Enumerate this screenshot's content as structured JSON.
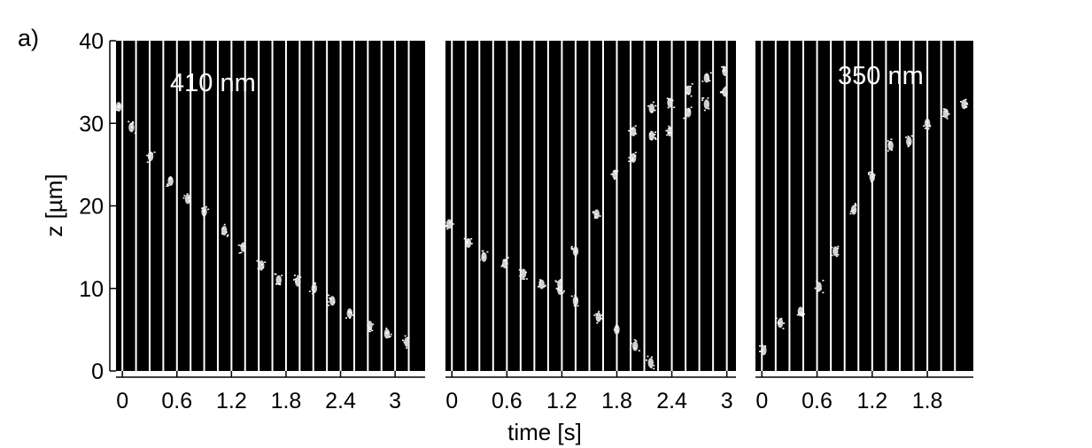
{
  "chart_data": {
    "type": "scatter",
    "panel_label": "a)",
    "xlabel": "time [s]",
    "ylabel": "z [µm]",
    "ylim": [
      0,
      40
    ],
    "y_ticks": [
      0,
      10,
      20,
      30,
      40
    ],
    "panels": [
      {
        "annotation": "410 nm",
        "xlim": [
          -0.07,
          3.33
        ],
        "x_ticks": [
          {
            "label": "0",
            "value": 0
          },
          {
            "label": "0.6",
            "value": 0.6
          },
          {
            "label": "1.2",
            "value": 1.2
          },
          {
            "label": "1.8",
            "value": 1.8
          },
          {
            "label": "2.4",
            "value": 2.4
          },
          {
            "label": "3",
            "value": 3.0
          }
        ],
        "frames": [
          0,
          0.15,
          0.3,
          0.45,
          0.6,
          0.75,
          0.9,
          1.05,
          1.2,
          1.35,
          1.5,
          1.65,
          1.8,
          1.95,
          2.1,
          2.25,
          2.4,
          2.55,
          2.7,
          2.85,
          3.0,
          3.15
        ],
        "series": [
          {
            "x": [
              -0.04,
              0.1,
              0.31,
              0.53,
              0.72,
              0.9,
              1.12,
              1.33,
              1.53,
              1.72,
              1.93,
              2.11,
              2.31,
              2.5,
              2.72,
              2.91,
              3.13
            ],
            "y": [
              32,
              29.5,
              26,
              23,
              20.8,
              19.3,
              17,
              15,
              12.8,
              11,
              10.8,
              10,
              8.5,
              7,
              5.5,
              4.5,
              3.5
            ]
          }
        ]
      },
      {
        "annotation": "",
        "xlim": [
          -0.07,
          3.1
        ],
        "x_ticks": [
          {
            "label": "0",
            "value": 0
          },
          {
            "label": "0.6",
            "value": 0.6
          },
          {
            "label": "1.2",
            "value": 1.2
          },
          {
            "label": "1.8",
            "value": 1.8
          },
          {
            "label": "2.4",
            "value": 2.4
          },
          {
            "label": "3",
            "value": 3.0
          }
        ],
        "frames": [
          0,
          0.15,
          0.3,
          0.45,
          0.6,
          0.75,
          0.9,
          1.05,
          1.2,
          1.35,
          1.5,
          1.65,
          1.8,
          1.95,
          2.1,
          2.25,
          2.4,
          2.55,
          2.7,
          2.85,
          3.0
        ],
        "series": [
          {
            "x": [
              -0.03,
              0.18,
              0.35,
              0.58,
              0.78,
              0.98,
              1.18,
              1.35,
              1.6,
              1.8,
              2.0,
              2.17
            ],
            "y": [
              17.8,
              15.5,
              13.8,
              13,
              11.8,
              10.5,
              9.8,
              8.5,
              6.5,
              5,
              3,
              1
            ]
          },
          {
            "x": [
              1.18,
              1.35,
              1.58,
              1.78,
              1.98
            ],
            "y": [
              10.5,
              14.5,
              19,
              23.8,
              29
            ]
          },
          {
            "x": [
              1.98,
              2.18,
              2.38,
              2.58,
              2.78,
              2.98
            ],
            "y": [
              25.8,
              28.5,
              29,
              31.3,
              32.3,
              33.8
            ]
          },
          {
            "x": [
              2.18,
              2.38,
              2.58,
              2.78,
              2.98
            ],
            "y": [
              31.8,
              32.5,
              34,
              35.5,
              36.3
            ]
          }
        ]
      },
      {
        "annotation": "350 nm",
        "xlim": [
          -0.07,
          2.3
        ],
        "x_ticks": [
          {
            "label": "0",
            "value": 0
          },
          {
            "label": "0.6",
            "value": 0.6
          },
          {
            "label": "1.2",
            "value": 1.2
          },
          {
            "label": "1.8",
            "value": 1.8
          }
        ],
        "frames": [
          0,
          0.15,
          0.3,
          0.45,
          0.6,
          0.75,
          0.9,
          1.05,
          1.2,
          1.35,
          1.5,
          1.65,
          1.8,
          1.95,
          2.1
        ],
        "series": [
          {
            "x": [
              0.02,
              0.2,
              0.42,
              0.62,
              0.8,
              1.0,
              1.2,
              1.4,
              1.6,
              1.8,
              2.0,
              2.2
            ],
            "y": [
              2.5,
              5.8,
              7.2,
              10.2,
              14.5,
              19.5,
              23.5,
              27.3,
              27.8,
              30,
              31.2,
              32.3
            ]
          }
        ]
      }
    ]
  }
}
